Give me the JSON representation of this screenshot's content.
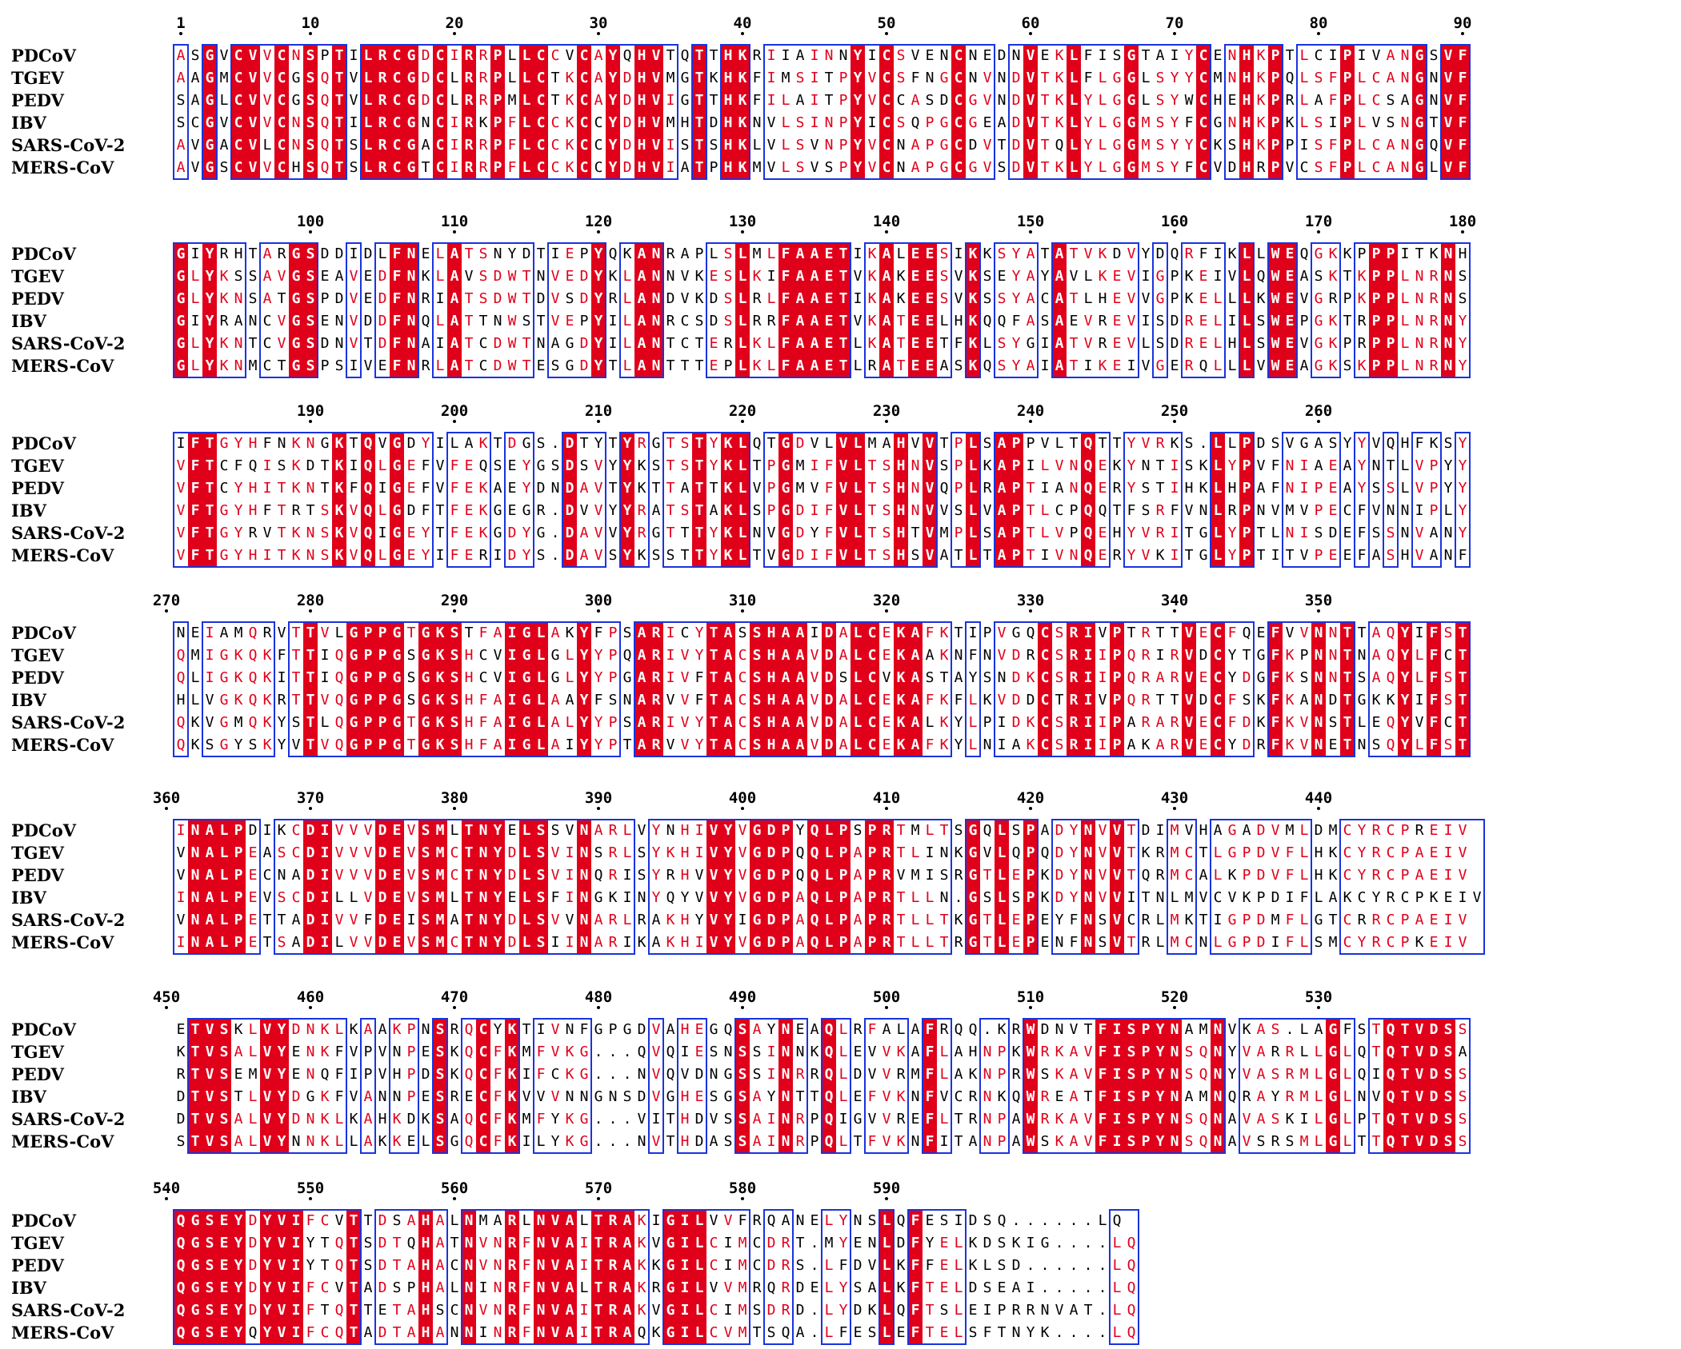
{
  "sequences": [
    "PDCoV",
    "TGEV",
    "PEDV",
    "IBV",
    "SARS-CoV-2",
    "MERS-CoV"
  ],
  "colors": {
    "identical_bg": "#e0001a",
    "similar_text": "#e0001a",
    "box_border": "#1a33dd"
  },
  "blocks": [
    {
      "start": 1,
      "ticks": [
        1,
        10,
        20,
        30,
        40,
        50,
        60,
        70,
        80,
        90
      ],
      "rows": [
        "ASGVCVVCNSPTILRCGDCIRRPLLCCVCAYQHVTQTTHKRIIAINNYICSVENCNEDNVEKLFISGTAIYCENHKPTLCIPIVANGSVF",
        "AAGMCVVCGSQTVLRCGDCLRRPLLCTKCAYDHVMGTKHKFIMSITPYVCSFNGCNVNDVTKLFLGGLSYYCMNHKPQLSFPLCANGNVF",
        "SAGLCVVCGSQTVLRCGDCLRRPMLCTKCAYDHVIGTTHKFILAITPYVCCASDCGVNDVTKLYLGGLSYWCHEHKPRLAFPLCSAGNVF",
        "SCGVCVVCNSQTILRCGNCIRKPFLCCKCCYDHVMHTDHKNVLSINPYICSQPGCGEADVTKLYLGGMSYFCGNHKPKLSIPLVSNGTVF",
        "AVGACVLCNSQTSLRCGACIRRPFLCCKCCYDHVISTSHKLVLSVNPYVCNAPGCDVTDVTQLYLGGMSYYCKSHKPPISFPLCANGQVF",
        "AVGSCVVCHSQTSLRCGTCIRRPFLCCKCCYDHVIATPHKMVLSVSPYVCNAPGCGVSDVTKLYLGGMSYFCVDHRPVCSFPLCANGLVF"
      ]
    },
    {
      "start": 91,
      "ticks": [
        100,
        110,
        120,
        130,
        140,
        150,
        160,
        170,
        180
      ],
      "rows": [
        "GIYRHTARGSDDIDLFNELATSNYDTIEPYQKANRAPLSLMLFAAETIKALEESIKKSYATATVKDVYDQRFIKLLWEQGKKPPPITKNH",
        "GLYKSSAVGSEAVEDFNKLAVSDWTNVEDYKLANNVKESLKIFAAETVKAKEESVKSEYAYAVLKEVIGPKEIVLQWEASKTKPPLNRNS",
        "GLYKNSATGSPDVEDFNRIATSDWTDVSDYRLANDVKDSLRLFAAETIKAKEESVKSSYACATLHEVVGPKELLLKWEVGRPKPPLNRNS",
        "GIYRANCVGSENVDDFNQLATTNWSTVEPYILANRCSDSLRRFAAETVKATEELHKQQFASAEVREVISDRELILSWEPGKTRPPLNRNY",
        "GLYKNTCVGSDNVTDFNAIATCDWTNAGDYILANTCTERLKLFAAETLKATEETFKLSYGIATVREVLSDRELHLSWEVGKPRPPLNRNY",
        "GLYKNMCTGSPSIVEFNRLATCDWTESGDYTLANTTTEPLKLFAAETLRATEEASKQSYAIATIKEIVGERQLLLVWEAGKSKPPLNRNY"
      ]
    },
    {
      "start": 181,
      "ticks": [
        190,
        200,
        210,
        220,
        230,
        240,
        250,
        260
      ],
      "rows": [
        "IFTGYHFNKNGKTQVGDYILAKTDGS.DTYTYRGTSTYKLQTGDVLVLMAHVVTPLSAPPVLTQTTYVRKS.LLPDSVGASYYVQHFKSY",
        "VFTCFQISKDTKIQLGEFVFEQSEYGSDSVYYKSTSTYKLTPGMIFVLTSHNVSPLKAPILVNQEKYNTISKLYPVFNIAEAYNTLVPYY",
        "VFTCYHITKNTKFQIGEFVFEKAEYDNDAVTYKTTATTKLVPGMVFVLTSHNVQPLRAPTIANQERYSTIHKLHPAFNIPEAYSSLVPYY",
        "VFTGYHFTRTSKVQLGDFTFEKGEGR.DVVYYRATSTAKLSPGDIFVLTSHNVVSLVAPTLCPQQTFSRFVNLRPNVMVPECFVNNIPLY",
        "VFTGYRVTKNSKVQIGEYTFEKGDYG.DAVVYRGTTTYKLNVGDYFVLTSHTVMPLSAPTLVPQEHYVRITGLYPTLNISDEFSSNVANY",
        "VFTGYHITKNSKVQLGEYIFERIDYS.DAVSYKSSTTYKLTVGDIFVLTSHSVATLTAPTIVNQERYVKITGLYPTITVPEEFASHVANF"
      ]
    },
    {
      "start": 271,
      "ticks": [
        270,
        280,
        290,
        300,
        310,
        320,
        330,
        340,
        350
      ],
      "rows": [
        "NEIAMQRVTTVLGPPGTGKSTFAIGLAKYFPSARICYTASSHAAIDALCEKAFKTIPVGQCSRIVPTRTTVECFQEFVVNNTTAQYIFST",
        "QMIGKQKFTTIQGPPGSGKSHCVIGLGLYYPQARIVYTACSHAAVDALCEKAAKNFNVDRCSRIIPQRIRVDCYTGFKPNNTNAQYLFCT",
        "QLIGKQKITTIQGPPGSGKSHCVIGLGLYYPGARIVFTACSHAAVDSLCVKASTAYSNDKCSRIIPQRARVECYDGFKSNNTSAQYLFST",
        "HLVGKQKRTTVQGPPGSGKSHFAIGLAAYFSNARVVFTACSHAAVDALCEKAFKFLKVDDCTRIVPQRTTVDCFSKFKANDTGKKYIFST",
        "QKVGMQKYSTLQGPPGTGKSHFAIGLALYYPSARIVYTACSHAAVDALCEKALKYLPIDKCSRIIPARARVECFDKFKVNSTLEQYVFCT",
        "QKSGYSKYVTVQGPPGTGKSHFAIGLAIYYPTARVVYTACSHAAVDALCEKAFKYLNIAKCSRIIPAKARVECYDRFKVNETNSQYLFST"
      ]
    },
    {
      "start": 361,
      "ticks": [
        360,
        370,
        380,
        390,
        400,
        410,
        420,
        430,
        440
      ],
      "rows": [
        "INALPDIKCDIVVVDEVSMLTNYELSSVNARLVYNHIVYVGDPYQLPSPRTMLTSGQLSPADYNVVTDIMVHAGADVMLDMCYRCPREIV",
        "VNALPEASCDIVVVDEVSMCTNYDLSVINSRLSYKHIVYVGDPQQLPAPRTLINKGVLQPQDYNVVTKRMCTLGPDVFLHKCYRCPAEIV",
        "VNALPECNADIVVVDEVSMCTNYDLSVINQRISYRHVVYVGDPQQLPAPRVMISRGTLEPKDYNVVTQRMCALKPDVFLHKCYRCPAEIV",
        "INALPEVSCDILLVDEVSMLTNYELSFINGKINYQYVVYVGDPAQLPAPRTLLN.GSLSPKDYNVVITNLMVCVKPDIFLAKCYRCPKEIV",
        "VNALPETTADIVVFDEISMATNYDLSVVNARLRAKHYVYIGDPAQLPAPRTLLTKGTLEPEYFNSVCRLMKTIGPDMFLGTCRRCPAEIV",
        "INALPETSADILVVDEVSMCTNYDLSIINARIKAKHIVYVGDPAQLPAPRTLLTRGTLEPENFNSVTRLMCNLGPDIFLSMCYRCPKEIV"
      ]
    },
    {
      "start": 451,
      "ticks": [
        450,
        460,
        470,
        480,
        490,
        500,
        510,
        520,
        530
      ],
      "rows": [
        "ETVSKLVYDNKLKAAKPNSRQCYKTIVNFGPGDVAHEGQSAYNEAQLRFALAFRQQ.KRWDNVTFISPYNAMNVKAS.LAGFSTQTVDSS",
        "KTVSALVYENKFVPVNPESKQCFKMFVKG...QVQIESNSSINNKQLEVVKAFLAHNPKWRKAVFISPYNSQNYVARRLLGLQTQTVDSA",
        "RTVSEMVYENQFIPVHPDSKQCFKIFCKG...NVQVDNGSSINRRQLDVVRMFLAKNPRWSKAVFISPYNSQNYVASRMLGLQIQTVDSS",
        "DTVSTLVYDGKFVANNPESRECFKVVVNNGNSDVGHESGSAYNTTQLEFVKNFVCRNKQWREATFISPYNAMNQRAYRMLGLNVQTVDSS",
        "DTVSALVYDNKLKAHKDKSAQCFKMFYKG...VITHDVSSAINRPQIGVVREFLTRNPAWRKAVFISPYNSQNAVASKILGLPTQTVDSS",
        "STVSALVYNNKLLAKKELSGQCFKILYKG...NVTHDASSAINRPQLTFVKNFITANPAWSKAVFISPYNSQNAVSRSMLGLTTQTVDSS"
      ]
    },
    {
      "start": 541,
      "ticks": [
        540,
        550,
        560,
        570,
        580,
        590
      ],
      "rows": [
        "QGSEYDYVIFCVTTDSAHALNMARLNVALTRAKIGILVVFRQANELYNSLQFESIDSQ......LQ",
        "QGSEYDYVIYTQTSDTQHATNVNRFNVAITRAKVGILCIMCDRT.MYENLDFYELKDSKIG....LQ",
        "QGSEYDYVIYTQTSDTAHACNVNRFNVAITRAKKGILCIMCDRS.LFDVLKFFELKLSD......LQ",
        "QGSEYDYVIFCVTADSPHALNINRFNVALTRAKRGILVVMRQRDELYSALKFTELDSEAI.....LQ",
        "QGSEYDYVIFTQTTETAHSCNVNRFNVAITRAKVGILCIMSDRD.LYDKLQFTSLEIPRRNVAT.LQ",
        "QGSEYQYVIFCQTADTAHANNINRFNVAITRAQKGILCVMTSQA.LFESLEFTELSFTNYK....LQ"
      ]
    }
  ]
}
